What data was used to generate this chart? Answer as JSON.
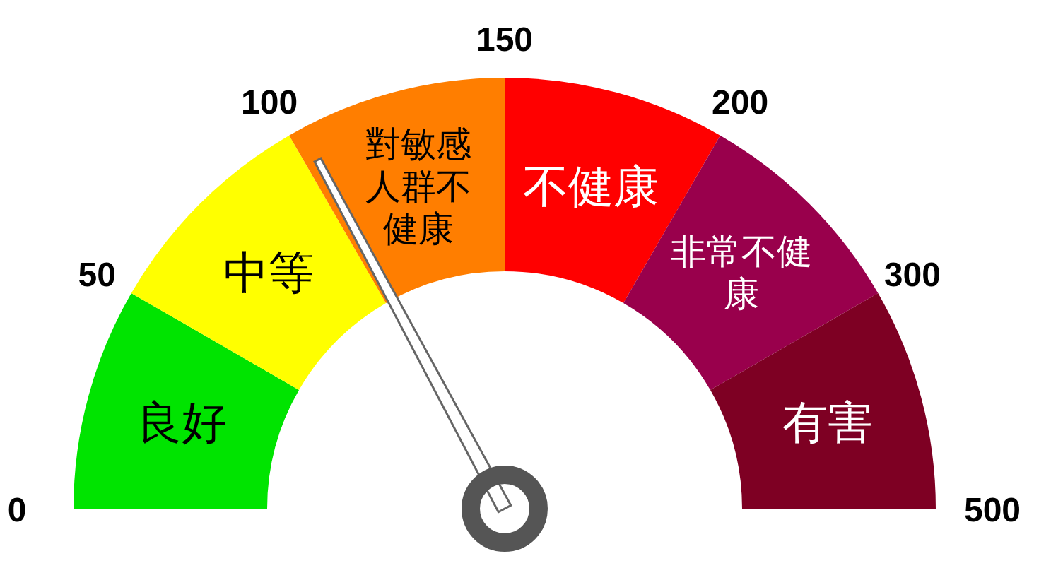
{
  "chart_data": {
    "type": "donut",
    "categories": [
      "良好",
      "中等",
      "對敏感人群不健康",
      "不健康",
      "非常不健康",
      "有害"
    ],
    "values": [
      16.67,
      16.67,
      16.66,
      16.67,
      16.67,
      16.66
    ],
    "colors": [
      "#00e400",
      "#ffff00",
      "#ff7e00",
      "#ff0000",
      "#99004c",
      "#7e0023"
    ],
    "needle": "對敏感人群不健康",
    "annotations": [
      "0",
      "50",
      "100",
      "150",
      "200",
      "300",
      "500"
    ]
  }
}
